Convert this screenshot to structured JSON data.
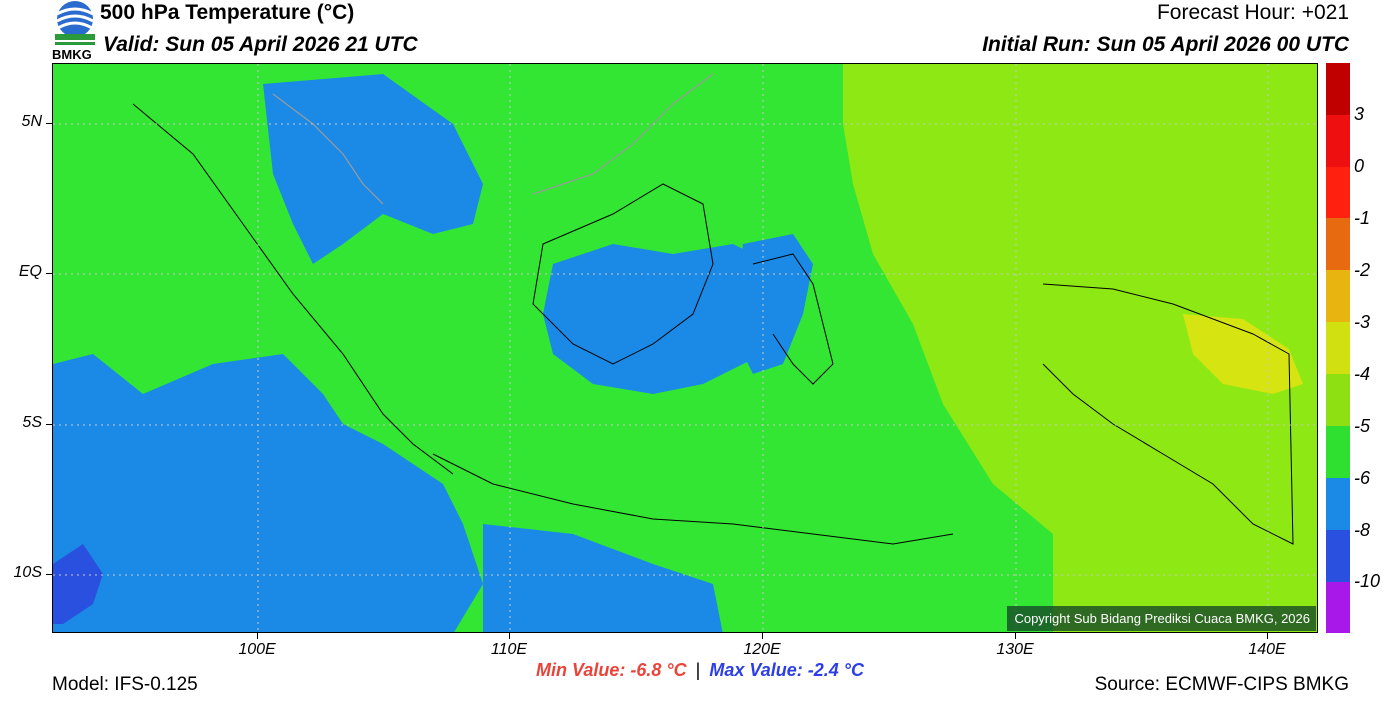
{
  "header": {
    "title": "500 hPa Temperature (°C)",
    "valid": "Valid: Sun 05 April 2026 21 UTC",
    "forecast_hour": "Forecast Hour: +021",
    "initial_run": "Initial Run: Sun 05 April 2026 00 UTC",
    "logo_text": "BMKG"
  },
  "map": {
    "lat_labels": [
      "5N",
      "EQ",
      "5S",
      "10S"
    ],
    "lon_labels": [
      "100E",
      "110E",
      "120E",
      "130E",
      "140E"
    ],
    "copyright": "Copyright Sub Bidang Prediksi Cuaca BMKG, 2026"
  },
  "colorbar": {
    "labels": [
      "3",
      "0",
      "-1",
      "-2",
      "-3",
      "-4",
      "-5",
      "-6",
      "-8",
      "-10"
    ],
    "colors": [
      "#c00000",
      "#ee1010",
      "#ff2010",
      "#e86a10",
      "#e8b410",
      "#d0e010",
      "#8ee012",
      "#30e030",
      "#1a8ae6",
      "#2a50e0",
      "#a818e8",
      "#a8105a"
    ]
  },
  "stats": {
    "min_label": "Min Value: -6.8",
    "min_unit": "°C",
    "max_label": "Max Value: -2.4",
    "max_unit": "°C",
    "separator": "|"
  },
  "footer": {
    "model": "Model: IFS-0.125",
    "source": "Source: ECMWF-CIPS BMKG"
  }
}
